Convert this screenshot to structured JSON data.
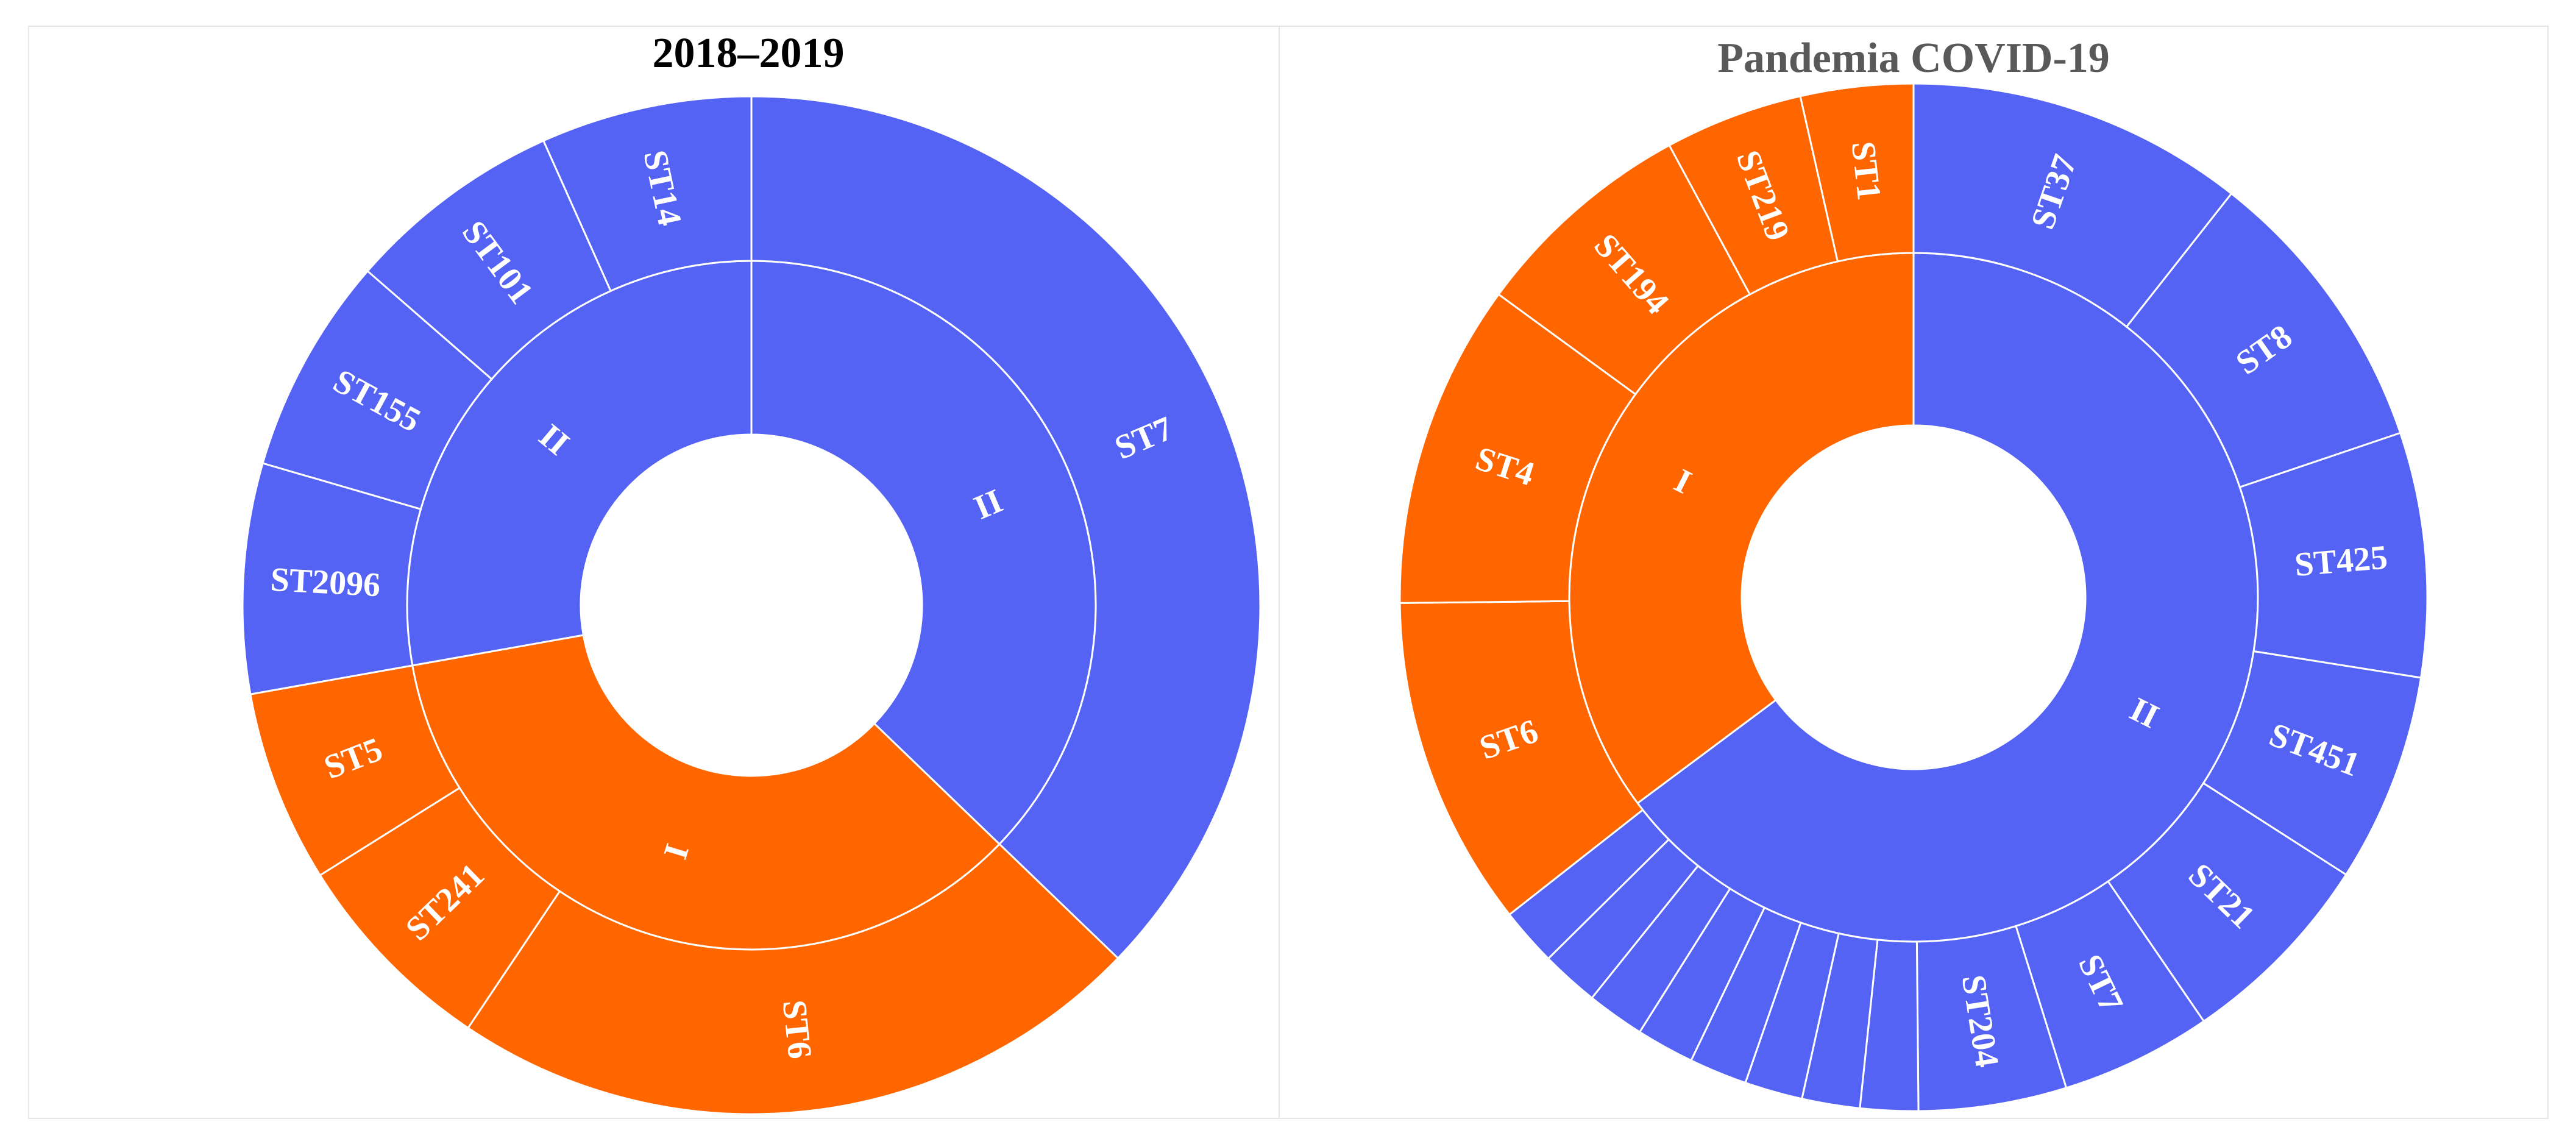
{
  "colors": {
    "I": "#ff6600",
    "II": "#5563f5",
    "title_left": "#000000",
    "title_right": "#595959"
  },
  "chart_data": [
    {
      "type": "sunburst",
      "title": "2018–2019",
      "start_angle_deg": 0,
      "inner": [
        {
          "label": "II",
          "group": "II",
          "value": 37.2
        },
        {
          "label": "I",
          "group": "I",
          "value": 35.0
        },
        {
          "label": "II",
          "group": "II",
          "value": 27.8
        }
      ],
      "outer": [
        {
          "label": "ST7",
          "group": "II",
          "value": 37.2
        },
        {
          "label": "ST6",
          "group": "I",
          "value": 22.2
        },
        {
          "label": "ST241",
          "group": "I",
          "value": 6.7
        },
        {
          "label": "ST5",
          "group": "I",
          "value": 6.1
        },
        {
          "label": "ST2096",
          "group": "II",
          "value": 7.3
        },
        {
          "label": "ST155",
          "group": "II",
          "value": 6.9
        },
        {
          "label": "ST101",
          "group": "II",
          "value": 6.9
        },
        {
          "label": "ST14",
          "group": "II",
          "value": 6.7
        }
      ]
    },
    {
      "type": "sunburst",
      "title": "Pandemia COVID-19",
      "start_angle_deg": 0,
      "inner": [
        {
          "label": "II",
          "group": "II",
          "value": 64.8
        },
        {
          "label": "I",
          "group": "I",
          "value": 35.2
        }
      ],
      "outer": [
        {
          "label": "ST37",
          "group": "II",
          "value": 10.5
        },
        {
          "label": "ST8",
          "group": "II",
          "value": 9.1
        },
        {
          "label": "ST425",
          "group": "II",
          "value": 7.6
        },
        {
          "label": "ST451",
          "group": "II",
          "value": 6.5
        },
        {
          "label": "ST21",
          "group": "II",
          "value": 6.3
        },
        {
          "label": "ST7",
          "group": "II",
          "value": 4.7
        },
        {
          "label": "ST204",
          "group": "II",
          "value": 4.6
        },
        {
          "label": "",
          "group": "II",
          "value": 1.8
        },
        {
          "label": "",
          "group": "II",
          "value": 1.8
        },
        {
          "label": "",
          "group": "II",
          "value": 1.8
        },
        {
          "label": "",
          "group": "II",
          "value": 1.8
        },
        {
          "label": "",
          "group": "II",
          "value": 1.8
        },
        {
          "label": "",
          "group": "II",
          "value": 1.8
        },
        {
          "label": "",
          "group": "II",
          "value": 1.8
        },
        {
          "label": "",
          "group": "II",
          "value": 1.8
        },
        {
          "label": "ST6",
          "group": "I",
          "value": 10.3
        },
        {
          "label": "ST4",
          "group": "I",
          "value": 10.1
        },
        {
          "label": "ST194",
          "group": "I",
          "value": 7.0
        },
        {
          "label": "ST219",
          "group": "I",
          "value": 4.3
        },
        {
          "label": "ST1",
          "group": "I",
          "value": 3.5
        }
      ]
    }
  ]
}
